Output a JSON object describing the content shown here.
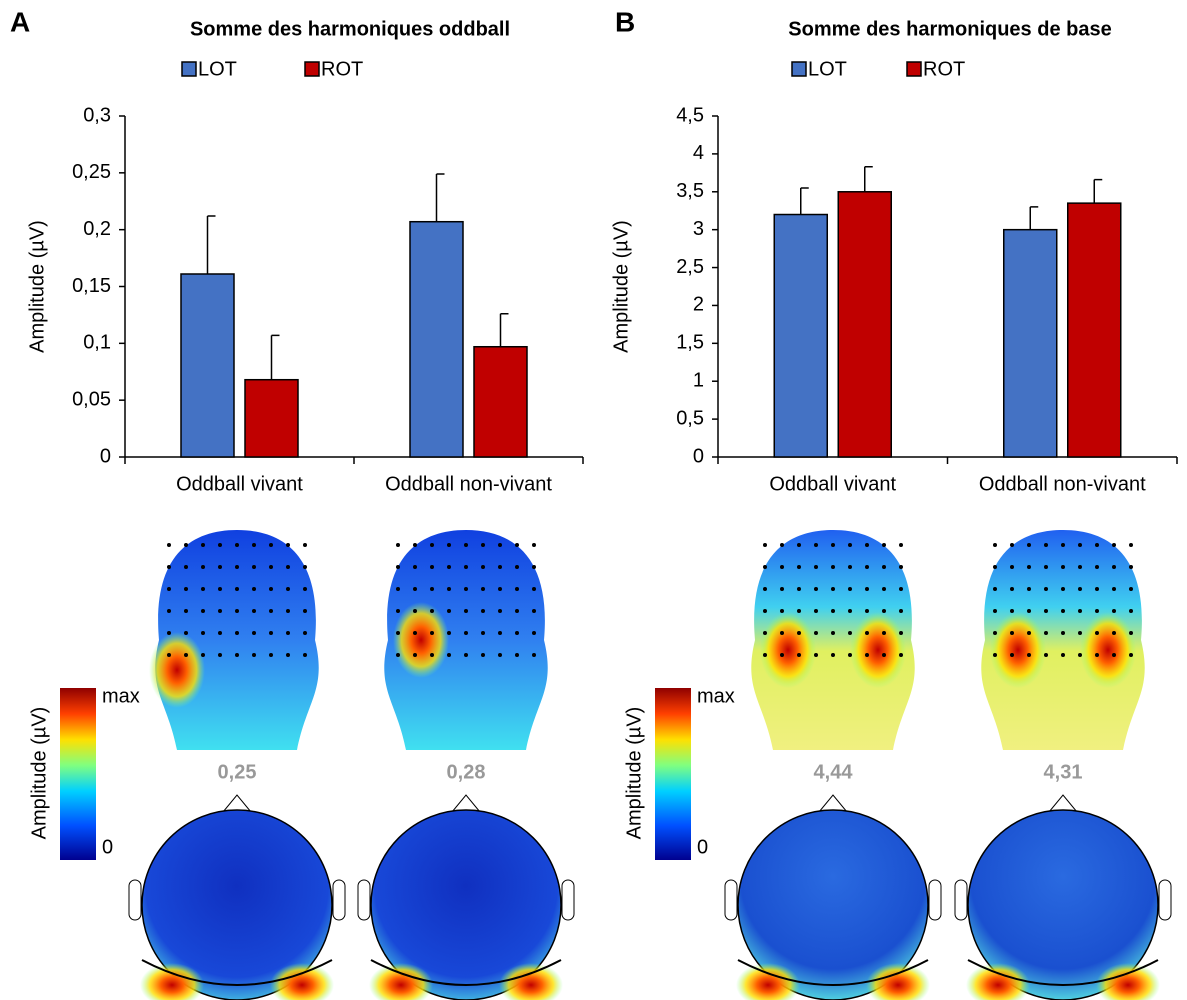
{
  "chart_data": [
    {
      "type": "bar",
      "panel_letter": "A",
      "title": "Somme des harmoniques oddball",
      "y_label": "Amplitude (µV)",
      "categories": [
        "Oddball vivant",
        "Oddball non-vivant"
      ],
      "series": [
        {
          "name": "LOT",
          "color": "#4472c4",
          "values": [
            0.161,
            0.207
          ],
          "errors": [
            0.051,
            0.042
          ]
        },
        {
          "name": "ROT",
          "color": "#c00000",
          "values": [
            0.068,
            0.097
          ],
          "errors": [
            0.039,
            0.029
          ]
        }
      ],
      "ylim": [
        0,
        0.3
      ],
      "yticks": [
        0,
        {
          "value": 0.05,
          "label": "0,05"
        },
        {
          "value": 0.1,
          "label": "0,1"
        },
        {
          "value": 0.15,
          "label": "0,15"
        },
        {
          "value": 0.2,
          "label": "0,2"
        },
        {
          "value": 0.25,
          "label": "0,25"
        },
        {
          "value": 0.3,
          "label": "0,3"
        }
      ],
      "grid": false,
      "topography": {
        "colorbar_label": "Amplitude (µV)",
        "colorbar_max": "max",
        "colorbar_min": "0",
        "map_values": [
          "0,25",
          "0,28"
        ]
      }
    },
    {
      "type": "bar",
      "panel_letter": "B",
      "title": "Somme des harmoniques de base",
      "y_label": "Amplitude (µV)",
      "categories": [
        "Oddball vivant",
        "Oddball non-vivant"
      ],
      "series": [
        {
          "name": "LOT",
          "color": "#4472c4",
          "values": [
            3.2,
            3.0
          ],
          "errors": [
            0.35,
            0.3
          ]
        },
        {
          "name": "ROT",
          "color": "#c00000",
          "values": [
            3.5,
            3.35
          ],
          "errors": [
            0.33,
            0.31
          ]
        }
      ],
      "ylim": [
        0,
        4.5
      ],
      "yticks": [
        0,
        {
          "value": 0.5,
          "label": "0,5"
        },
        1,
        {
          "value": 1.5,
          "label": "1,5"
        },
        2,
        {
          "value": 2.5,
          "label": "2,5"
        },
        3,
        {
          "value": 3.5,
          "label": "3,5"
        },
        4,
        {
          "value": 4.5,
          "label": "4,5"
        }
      ],
      "grid": false,
      "topography": {
        "colorbar_label": "Amplitude (µV)",
        "colorbar_max": "max",
        "colorbar_min": "0",
        "map_values": [
          "4,44",
          "4,31"
        ]
      }
    }
  ]
}
